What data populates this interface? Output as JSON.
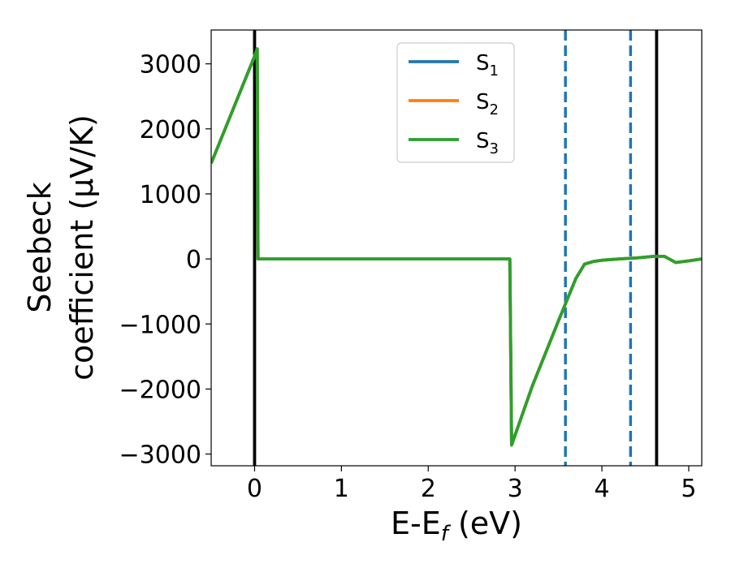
{
  "chart_data": {
    "type": "line",
    "xlabel": "E-E",
    "xlabel_sub": "f",
    "xlabel_unit": " (eV)",
    "ylabel_line1": "Seebeck",
    "ylabel_line2": "coefficient  (μV/K)",
    "xlim": [
      -0.5,
      5.15
    ],
    "ylim": [
      -3180,
      3520
    ],
    "x_ticks": [
      0,
      1,
      2,
      3,
      4,
      5
    ],
    "x_tick_labels": [
      "0",
      "1",
      "2",
      "3",
      "4",
      "5"
    ],
    "y_ticks": [
      -3000,
      -2000,
      -1000,
      0,
      1000,
      2000,
      3000
    ],
    "y_tick_labels": [
      "−3000",
      "−2000",
      "−1000",
      "0",
      "1000",
      "2000",
      "3000"
    ],
    "legend_position": "top-center",
    "series": [
      {
        "name": "S",
        "sub": "1",
        "color": "#1f77b4",
        "x": [
          -0.5,
          0.0,
          0.03,
          0.04,
          2.94,
          2.96,
          3.2,
          3.5,
          3.7,
          3.8,
          3.9,
          4.0,
          4.2,
          4.4,
          4.6,
          4.72,
          4.85,
          5.0,
          5.15
        ],
        "y": [
          1470,
          3120,
          3230,
          0,
          0,
          -2860,
          -1950,
          -950,
          -300,
          -80,
          -40,
          -20,
          0,
          15,
          40,
          40,
          -55,
          -30,
          0
        ]
      },
      {
        "name": "S",
        "sub": "2",
        "color": "#ff7f0e",
        "x": [
          -0.5,
          0.0,
          0.03,
          0.04,
          2.94,
          2.96,
          3.2,
          3.5,
          3.7,
          3.8,
          3.9,
          4.0,
          4.2,
          4.4,
          4.6,
          4.72,
          4.85,
          5.0,
          5.15
        ],
        "y": [
          1470,
          3120,
          3230,
          0,
          0,
          -2860,
          -1950,
          -950,
          -300,
          -80,
          -40,
          -20,
          0,
          15,
          40,
          40,
          -55,
          -30,
          0
        ]
      },
      {
        "name": "S",
        "sub": "3",
        "color": "#2ca02c",
        "x": [
          -0.5,
          0.0,
          0.03,
          0.04,
          2.94,
          2.96,
          3.2,
          3.5,
          3.7,
          3.8,
          3.9,
          4.0,
          4.2,
          4.4,
          4.6,
          4.72,
          4.85,
          5.0,
          5.15
        ],
        "y": [
          1470,
          3120,
          3230,
          0,
          0,
          -2860,
          -1950,
          -950,
          -300,
          -80,
          -40,
          -20,
          0,
          15,
          40,
          40,
          -55,
          -30,
          0
        ]
      }
    ],
    "vlines": [
      {
        "x": 0.0,
        "color": "#000000",
        "style": "solid"
      },
      {
        "x": 4.63,
        "color": "#000000",
        "style": "solid"
      },
      {
        "x": 3.58,
        "color": "#1f77b4",
        "style": "dashed"
      },
      {
        "x": 4.33,
        "color": "#1f77b4",
        "style": "dashed"
      }
    ]
  }
}
